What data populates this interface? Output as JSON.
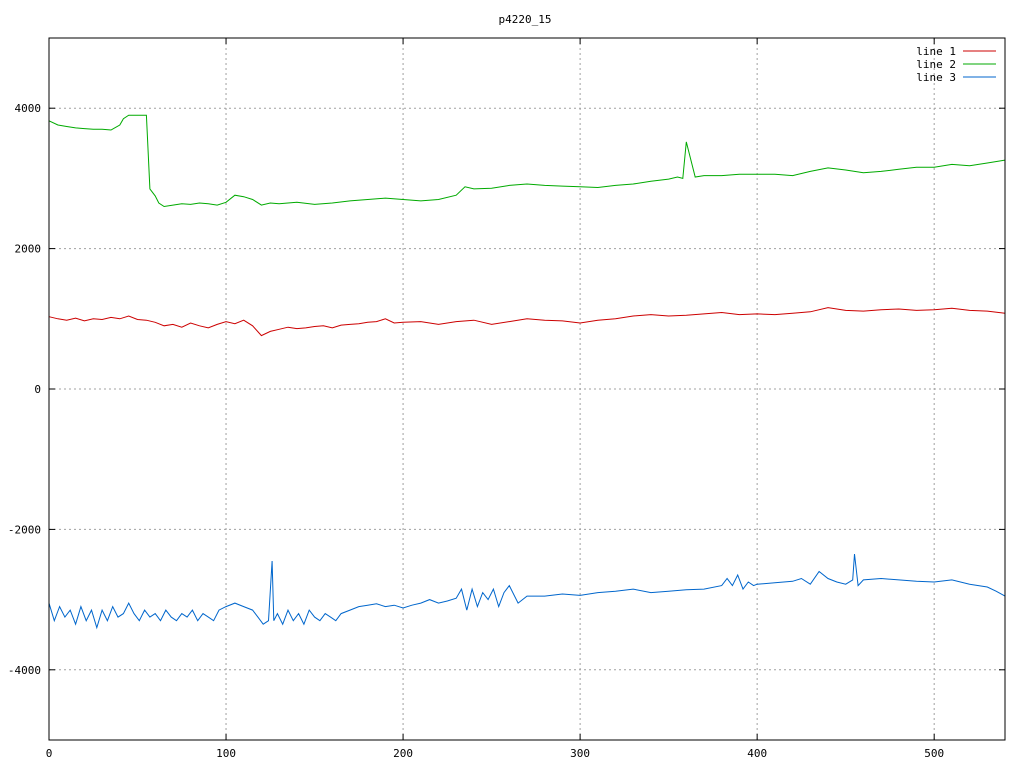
{
  "chart_data": {
    "type": "line",
    "title": "p4220_15",
    "xlabel": "",
    "ylabel": "",
    "xlim": [
      0,
      540
    ],
    "ylim": [
      -5000,
      5000
    ],
    "x_ticks": [
      0,
      100,
      200,
      300,
      400,
      500
    ],
    "y_ticks": [
      -4000,
      -2000,
      0,
      2000,
      4000
    ],
    "x_tick_labels": [
      "0",
      "100",
      "200",
      "300",
      "400",
      "500"
    ],
    "y_tick_labels": [
      "-4000",
      "-2000",
      "0",
      "2000",
      "4000"
    ],
    "grid": true,
    "legend_position": "top-right",
    "series": [
      {
        "name": "line 1",
        "color": "#cc0000",
        "x": [
          0,
          5,
          10,
          15,
          20,
          25,
          30,
          35,
          40,
          45,
          50,
          55,
          60,
          65,
          70,
          75,
          80,
          85,
          90,
          95,
          100,
          105,
          110,
          115,
          120,
          125,
          130,
          135,
          140,
          145,
          150,
          155,
          160,
          165,
          170,
          175,
          180,
          185,
          190,
          195,
          200,
          210,
          220,
          230,
          240,
          250,
          260,
          270,
          280,
          290,
          300,
          310,
          320,
          330,
          340,
          350,
          360,
          370,
          380,
          390,
          400,
          410,
          420,
          430,
          440,
          450,
          460,
          470,
          480,
          490,
          500,
          510,
          520,
          530,
          540
        ],
        "y": [
          1030,
          1000,
          980,
          1010,
          970,
          1000,
          990,
          1020,
          1000,
          1040,
          990,
          980,
          950,
          900,
          920,
          880,
          940,
          900,
          870,
          920,
          960,
          930,
          980,
          900,
          760,
          820,
          850,
          880,
          860,
          870,
          890,
          900,
          870,
          910,
          920,
          930,
          950,
          960,
          1000,
          940,
          950,
          960,
          920,
          960,
          980,
          920,
          960,
          1000,
          980,
          970,
          940,
          980,
          1000,
          1040,
          1060,
          1040,
          1050,
          1070,
          1090,
          1060,
          1070,
          1060,
          1080,
          1100,
          1160,
          1120,
          1110,
          1130,
          1140,
          1120,
          1130,
          1150,
          1120,
          1110,
          1080
        ]
      },
      {
        "name": "line 2",
        "color": "#00aa00",
        "x": [
          0,
          5,
          10,
          15,
          20,
          25,
          30,
          35,
          40,
          42,
          45,
          50,
          54,
          55,
          57,
          60,
          62,
          65,
          70,
          75,
          80,
          85,
          90,
          95,
          100,
          105,
          110,
          115,
          120,
          125,
          130,
          140,
          150,
          160,
          170,
          180,
          190,
          200,
          210,
          220,
          230,
          235,
          240,
          250,
          260,
          270,
          280,
          290,
          300,
          310,
          320,
          330,
          340,
          350,
          355,
          358,
          360,
          365,
          370,
          380,
          390,
          400,
          410,
          420,
          430,
          440,
          450,
          460,
          470,
          480,
          490,
          500,
          510,
          520,
          530,
          540
        ],
        "y": [
          3820,
          3760,
          3740,
          3720,
          3710,
          3700,
          3700,
          3690,
          3760,
          3850,
          3900,
          3900,
          3900,
          3900,
          2850,
          2750,
          2650,
          2600,
          2620,
          2640,
          2630,
          2650,
          2640,
          2620,
          2660,
          2760,
          2740,
          2700,
          2620,
          2650,
          2640,
          2660,
          2630,
          2650,
          2680,
          2700,
          2720,
          2700,
          2680,
          2700,
          2760,
          2880,
          2850,
          2860,
          2900,
          2920,
          2900,
          2890,
          2880,
          2870,
          2900,
          2920,
          2960,
          2990,
          3020,
          3000,
          3520,
          3020,
          3040,
          3040,
          3060,
          3060,
          3060,
          3040,
          3100,
          3150,
          3120,
          3080,
          3100,
          3130,
          3160,
          3160,
          3200,
          3180,
          3220,
          3260
        ]
      },
      {
        "name": "line 3",
        "color": "#0066cc",
        "x": [
          0,
          3,
          6,
          9,
          12,
          15,
          18,
          21,
          24,
          27,
          30,
          33,
          36,
          39,
          42,
          45,
          48,
          51,
          54,
          57,
          60,
          63,
          66,
          69,
          72,
          75,
          78,
          81,
          84,
          87,
          90,
          93,
          96,
          100,
          105,
          110,
          115,
          118,
          121,
          124,
          126,
          127,
          129,
          132,
          135,
          138,
          141,
          144,
          147,
          150,
          153,
          156,
          159,
          162,
          165,
          170,
          175,
          180,
          185,
          190,
          195,
          200,
          205,
          210,
          215,
          220,
          225,
          230,
          233,
          236,
          239,
          242,
          245,
          248,
          251,
          254,
          257,
          260,
          265,
          270,
          280,
          290,
          300,
          310,
          320,
          330,
          340,
          350,
          360,
          370,
          380,
          383,
          386,
          389,
          392,
          395,
          398,
          400,
          410,
          420,
          425,
          430,
          435,
          440,
          445,
          450,
          454,
          455,
          457,
          460,
          470,
          480,
          490,
          500,
          510,
          520,
          530,
          535,
          540
        ],
        "y": [
          -3050,
          -3300,
          -3100,
          -3250,
          -3150,
          -3350,
          -3100,
          -3300,
          -3150,
          -3400,
          -3150,
          -3300,
          -3100,
          -3250,
          -3200,
          -3050,
          -3200,
          -3300,
          -3150,
          -3250,
          -3200,
          -3300,
          -3150,
          -3250,
          -3300,
          -3200,
          -3250,
          -3150,
          -3300,
          -3200,
          -3250,
          -3300,
          -3150,
          -3100,
          -3050,
          -3100,
          -3150,
          -3250,
          -3350,
          -3300,
          -2450,
          -3300,
          -3200,
          -3350,
          -3150,
          -3300,
          -3200,
          -3350,
          -3150,
          -3250,
          -3300,
          -3200,
          -3250,
          -3300,
          -3200,
          -3150,
          -3100,
          -3080,
          -3060,
          -3100,
          -3080,
          -3120,
          -3080,
          -3050,
          -3000,
          -3050,
          -3020,
          -2980,
          -2850,
          -3150,
          -2850,
          -3100,
          -2900,
          -3000,
          -2850,
          -3100,
          -2900,
          -2800,
          -3050,
          -2950,
          -2950,
          -2920,
          -2940,
          -2900,
          -2880,
          -2850,
          -2900,
          -2880,
          -2860,
          -2850,
          -2800,
          -2700,
          -2800,
          -2650,
          -2850,
          -2750,
          -2800,
          -2780,
          -2760,
          -2740,
          -2700,
          -2780,
          -2600,
          -2700,
          -2750,
          -2780,
          -2720,
          -2350,
          -2800,
          -2720,
          -2700,
          -2720,
          -2740,
          -2750,
          -2720,
          -2780,
          -2820,
          -2880,
          -2950
        ]
      }
    ]
  }
}
